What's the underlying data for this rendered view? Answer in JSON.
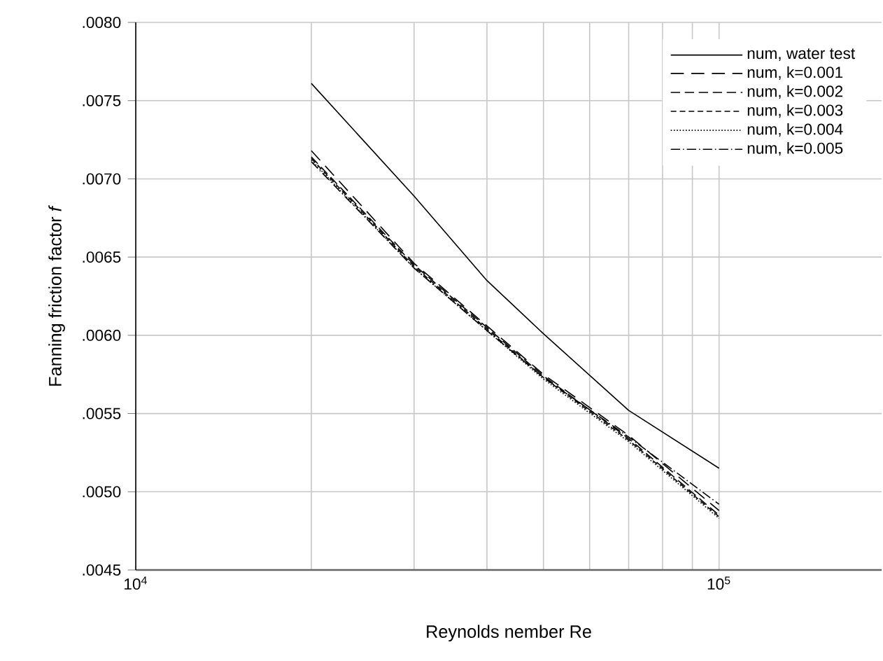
{
  "chart_data": {
    "type": "line",
    "xlabel": "Reynolds nember Re",
    "ylabel": "Fanning friction factor *f*",
    "log": "x",
    "grid": true,
    "legend": "top right",
    "x": [
      20000,
      30000,
      40000,
      50000,
      70000,
      100000
    ],
    "xlim": [
      10000,
      190000
    ],
    "xticks": [
      {
        "value": 10000,
        "label": "10$^{4}$"
      },
      {
        "value": 100000,
        "label": "10$^{5}$"
      }
    ],
    "ylim": [
      0.0045,
      0.008
    ],
    "yticks": [
      {
        "value": 0.0045,
        "label": ".0045"
      },
      {
        "value": 0.005,
        "label": ".0050"
      },
      {
        "value": 0.0055,
        "label": ".0055"
      },
      {
        "value": 0.006,
        "label": ".0060"
      },
      {
        "value": 0.0065,
        "label": ".0065"
      },
      {
        "value": 0.007,
        "label": ".0070"
      },
      {
        "value": 0.0075,
        "label": ".0075"
      },
      {
        "value": 0.008,
        "label": ".0080"
      }
    ],
    "series": [
      {
        "name": "num, water test",
        "color": "#000000",
        "line_style": "solid",
        "values": [
          0.00761,
          0.00689,
          0.00635,
          0.00601,
          0.00552,
          0.00515
        ]
      },
      {
        "name": "num, k=0.001",
        "color": "#000000",
        "line_style": "long dashed",
        "values": [
          0.00718,
          0.00646,
          0.00606,
          0.00575,
          0.00536,
          0.00488
        ]
      },
      {
        "name": "num, k=0.002",
        "color": "#000000",
        "line_style": "dashed",
        "values": [
          0.00714,
          0.00645,
          0.00605,
          0.00574,
          0.00534,
          0.00485
        ]
      },
      {
        "name": "num, k=0.003",
        "color": "#000000",
        "line_style": "short dashed",
        "values": [
          0.00713,
          0.00644,
          0.00604,
          0.00573,
          0.00533,
          0.00484
        ]
      },
      {
        "name": "num, k=0.004",
        "color": "#000000",
        "line_style": "dotted",
        "values": [
          0.00712,
          0.00643,
          0.00603,
          0.00572,
          0.00532,
          0.00483
        ]
      },
      {
        "name": "num, k=0.005",
        "color": "#000000",
        "line_style": "dashdot",
        "values": [
          0.00711,
          0.00643,
          0.00603,
          0.00573,
          0.00535,
          0.00492
        ]
      }
    ]
  }
}
